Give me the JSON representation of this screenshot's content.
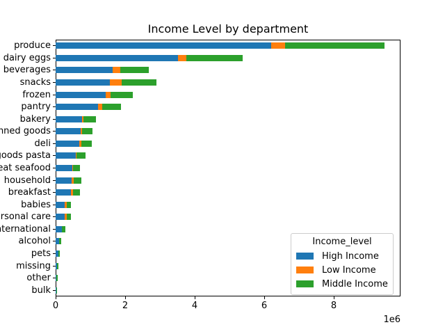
{
  "title": "Income Level by department",
  "legend": {
    "title": "Income_level",
    "entries": [
      {
        "label": "High Income",
        "color": "#1f77b4"
      },
      {
        "label": "Low Income",
        "color": "#ff7f0e"
      },
      {
        "label": "Middle Income",
        "color": "#2ca02c"
      }
    ]
  },
  "axes": {
    "x_tick_labels": [
      "0",
      "2",
      "4",
      "6",
      "8"
    ],
    "x_tick_values": [
      0,
      2000000,
      4000000,
      6000000,
      8000000
    ],
    "x_offset_label": "1e6",
    "x_min": 0,
    "x_max": 9920000
  },
  "chart_data": {
    "type": "bar",
    "orientation": "horizontal",
    "stacked": true,
    "title": "Income Level by department",
    "xlabel": "",
    "ylabel": "",
    "xlim": [
      0,
      9920000
    ],
    "x_unit_offset": "1e6",
    "grid": false,
    "legend_position": "lower right inside",
    "categories": [
      "produce",
      "dairy eggs",
      "beverages",
      "snacks",
      "frozen",
      "pantry",
      "bakery",
      "canned goods",
      "deli",
      "dry goods pasta",
      "meat seafood",
      "household",
      "breakfast",
      "babies",
      "personal care",
      "international",
      "alcohol",
      "pets",
      "missing",
      "other",
      "bulk"
    ],
    "series": [
      {
        "name": "High Income",
        "color": "#1f77b4",
        "values": [
          6200000,
          3520000,
          1630000,
          1560000,
          1440000,
          1220000,
          750000,
          710000,
          670000,
          570000,
          480000,
          450000,
          440000,
          260000,
          260000,
          175000,
          100000,
          74000,
          40000,
          26000,
          20000
        ]
      },
      {
        "name": "Low Income",
        "color": "#ff7f0e",
        "values": [
          390000,
          230000,
          220000,
          340000,
          130000,
          110000,
          50000,
          50000,
          70000,
          30000,
          25000,
          70000,
          65000,
          50000,
          60000,
          10000,
          8000,
          6000,
          4000,
          3000,
          2000
        ]
      },
      {
        "name": "Middle Income",
        "color": "#2ca02c",
        "values": [
          2860000,
          1630000,
          830000,
          990000,
          650000,
          540000,
          350000,
          300000,
          300000,
          260000,
          190000,
          210000,
          190000,
          130000,
          120000,
          100000,
          60000,
          46000,
          38000,
          22000,
          20000
        ]
      }
    ]
  }
}
